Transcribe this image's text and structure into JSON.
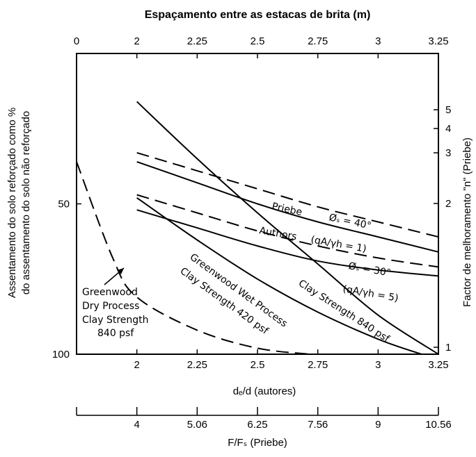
{
  "chart_data": {
    "type": "line",
    "title": "Espaçamento entre as estacas de brita (m)",
    "top_axis": {
      "ticks": [
        "0",
        "2",
        "2.25",
        "2.5",
        "2.75",
        "3",
        "3.25"
      ]
    },
    "xlabel": "dₑ/d (autores)",
    "x_ticks": [
      "2",
      "2.25",
      "2.5",
      "2.75",
      "3",
      "3.25"
    ],
    "xlim": [
      1.75,
      3.25
    ],
    "second_xlabel": "F/Fₛ (Priebe)",
    "second_x_ticks": [
      "4",
      "5.06",
      "6.25",
      "7.56",
      "9",
      "10.56"
    ],
    "ylabel_line1": "Assentamento do solo reforçado como %",
    "ylabel_line2": "do assentamento do solo não reforçado",
    "y_ticks": [
      "50",
      "100"
    ],
    "ylim": [
      100,
      0
    ],
    "right_ylabel": "Factor de melhoramento \"n\" (Priebe)",
    "right_ticks": [
      "5",
      "4",
      "3",
      "2",
      "1"
    ],
    "grid": false,
    "series": [
      {
        "name": "Priebe Øₛ = 40°",
        "style": "dashed",
        "x": [
          2.0,
          2.25,
          2.5,
          2.75,
          3.0,
          3.25
        ],
        "y": [
          33,
          39,
          45,
          51,
          56,
          61
        ]
      },
      {
        "name": "Authors (qA/γh = 1)",
        "style": "solid",
        "x": [
          2.0,
          2.25,
          2.5,
          2.75,
          3.0,
          3.25
        ],
        "y": [
          36,
          43,
          50,
          56,
          61,
          66
        ]
      },
      {
        "name": "Øₛ = 30°",
        "style": "dashed",
        "x": [
          2.0,
          2.25,
          2.5,
          2.75,
          3.0,
          3.25
        ],
        "y": [
          47,
          53,
          59,
          64,
          68,
          71
        ]
      },
      {
        "name": "(qA/γh = 5)",
        "style": "solid",
        "x": [
          2.0,
          2.25,
          2.5,
          2.75,
          3.0,
          3.25
        ],
        "y": [
          52,
          58,
          64,
          69,
          72,
          74
        ]
      },
      {
        "name": "Clay Strength 840 psf",
        "style": "solid",
        "x": [
          2.0,
          2.25,
          2.5,
          2.75,
          3.0,
          3.25
        ],
        "y": [
          16,
          35,
          53,
          70,
          87,
          100
        ]
      },
      {
        "name": "Greenwood Wet Process Clay Strength 420 psf",
        "style": "solid",
        "x": [
          2.0,
          2.25,
          2.5,
          2.75,
          3.0,
          3.18
        ],
        "y": [
          48,
          62,
          75,
          86,
          95,
          100
        ]
      },
      {
        "name": "Greenwood Dry Process Clay Strength 840 psf",
        "style": "dashed",
        "x": [
          1.75,
          1.9,
          2.0,
          2.25,
          2.5,
          2.72
        ],
        "y": [
          36,
          68,
          81,
          92,
          98,
          100
        ]
      }
    ],
    "annotations": [
      "Priebe",
      "Øₛ = 40°",
      "Authors",
      "(qA/γh = 1)",
      "Øₛ = 30°",
      "(qA/γh = 5)",
      "Clay Strength 840 psf",
      "Greenwood Wet Process",
      "Clay Strength 420 psf",
      "Greenwood",
      "Dry Process",
      "Clay Strength",
      "840 psf"
    ]
  }
}
